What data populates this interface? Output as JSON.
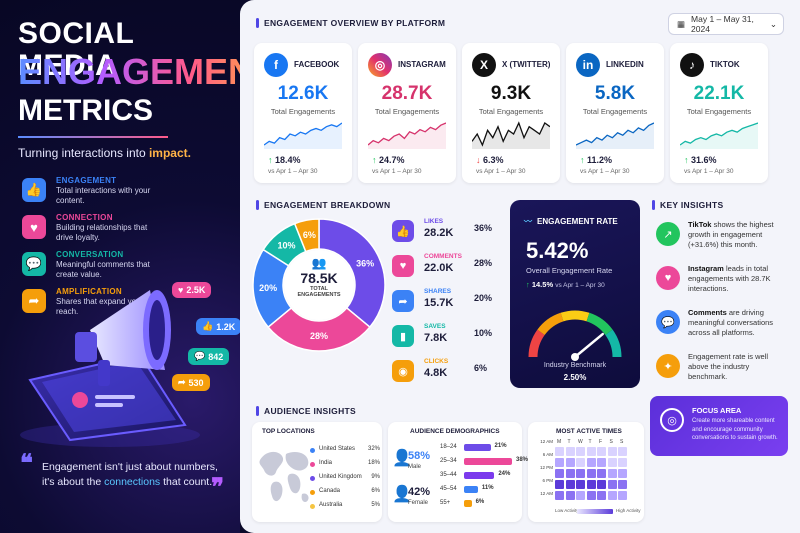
{
  "left": {
    "title_line1": "SOCIAL MEDIA",
    "title_line2": "ENGAGEMENT",
    "title_line3": "METRICS",
    "tagline_prefix": "Turning interactions into ",
    "tagline_highlight": "impact.",
    "categories": [
      {
        "name": "ENGAGEMENT",
        "desc": "Total interactions with your content.",
        "color": "#3b82f6",
        "icon": "thumbs-up-icon",
        "glyph": "👍"
      },
      {
        "name": "CONNECTION",
        "desc": "Building relationships that drive loyalty.",
        "color": "#ec4899",
        "icon": "heart-icon",
        "glyph": "♥"
      },
      {
        "name": "CONVERSATION",
        "desc": "Meaningful comments that create value.",
        "color": "#14b8a6",
        "icon": "chat-icon",
        "glyph": "💬"
      },
      {
        "name": "AMPLIFICATION",
        "desc": "Shares that expand your reach.",
        "color": "#f59e0b",
        "icon": "share-icon",
        "glyph": "➦"
      }
    ],
    "bubbles": [
      {
        "value": "2.5K",
        "color": "#ec4899"
      },
      {
        "value": "1.2K",
        "color": "#3b82f6"
      },
      {
        "value": "842",
        "color": "#14b8a6"
      },
      {
        "value": "530",
        "color": "#f59e0b"
      }
    ],
    "quote_a": "Engagement isn't just about numbers,",
    "quote_b": "it's about the ",
    "quote_highlight": "connections",
    "quote_c": " that count."
  },
  "overview": {
    "title": "ENGAGEMENT OVERVIEW BY PLATFORM",
    "date_range": "May 1 – May 31, 2024",
    "platforms": [
      {
        "name": "FACEBOOK",
        "value": "12.6K",
        "label": "Total Engagements",
        "change": "18.4%",
        "dir": "up",
        "vs": "vs Apr 1 – Apr 30",
        "color": "#1877f2",
        "valcolor": "#1877f2",
        "icon": "facebook-icon",
        "glyph": "f",
        "spark": [
          5,
          7,
          6,
          9,
          8,
          11,
          10,
          12,
          11,
          13,
          14,
          13,
          15,
          16,
          15,
          17
        ]
      },
      {
        "name": "INSTAGRAM",
        "value": "28.7K",
        "label": "Total Engagements",
        "change": "24.7%",
        "dir": "up",
        "vs": "vs Apr 1 – Apr 30",
        "color": "#e1306c",
        "valcolor": "#d6336c",
        "icon": "instagram-icon",
        "glyph": "◎",
        "spark": [
          6,
          8,
          7,
          9,
          8,
          10,
          11,
          9,
          12,
          11,
          13,
          12,
          14,
          13,
          15,
          16
        ]
      },
      {
        "name": "X (TWITTER)",
        "value": "9.3K",
        "label": "Total Engagements",
        "change": "6.3%",
        "dir": "down",
        "vs": "vs Apr 1 – Apr 30",
        "color": "#111111",
        "valcolor": "#111111",
        "icon": "x-icon",
        "glyph": "X",
        "spark": [
          8,
          10,
          7,
          11,
          9,
          12,
          8,
          11,
          10,
          13,
          9,
          12,
          11,
          10,
          13,
          12
        ]
      },
      {
        "name": "LINKEDIN",
        "value": "5.8K",
        "label": "Total Engagements",
        "change": "11.2%",
        "dir": "up",
        "vs": "vs Apr 1 – Apr 30",
        "color": "#0a66c2",
        "valcolor": "#0a66c2",
        "icon": "linkedin-icon",
        "glyph": "in",
        "spark": [
          5,
          6,
          7,
          6,
          8,
          7,
          9,
          8,
          10,
          9,
          11,
          10,
          12,
          11,
          13,
          14
        ]
      },
      {
        "name": "TIKTOK",
        "value": "22.1K",
        "label": "Total Engagements",
        "change": "31.6%",
        "dir": "up",
        "vs": "vs Apr 1 – Apr 30",
        "color": "#111111",
        "valcolor": "#14b8a6",
        "icon": "tiktok-icon",
        "glyph": "♪",
        "spark": [
          4,
          6,
          5,
          7,
          8,
          7,
          9,
          10,
          9,
          11,
          12,
          11,
          13,
          14,
          15,
          16
        ]
      }
    ]
  },
  "breakdown": {
    "title": "ENGAGEMENT BREAKDOWN",
    "total": "78.5K",
    "total_label_1": "TOTAL",
    "total_label_2": "ENGAGEMENTS",
    "slices": [
      {
        "name": "LIKES",
        "value": "28.2K",
        "pct": 36,
        "pct_label": "36%",
        "color": "#6d4ce8",
        "icon": "thumbs-up-icon",
        "glyph": "👍"
      },
      {
        "name": "COMMENTS",
        "value": "22.0K",
        "pct": 28,
        "pct_label": "28%",
        "color": "#ec4899",
        "icon": "heart-icon",
        "glyph": "♥"
      },
      {
        "name": "SHARES",
        "value": "15.7K",
        "pct": 20,
        "pct_label": "20%",
        "color": "#3b82f6",
        "icon": "share-icon",
        "glyph": "➦"
      },
      {
        "name": "SAVES",
        "value": "7.8K",
        "pct": 10,
        "pct_label": "10%",
        "color": "#14b8a6",
        "icon": "bookmark-icon",
        "glyph": "▮"
      },
      {
        "name": "CLICKS",
        "value": "4.8K",
        "pct": 6,
        "pct_label": "6%",
        "color": "#f59e0b",
        "icon": "eye-icon",
        "glyph": "◉"
      }
    ]
  },
  "rate": {
    "title": "ENGAGEMENT RATE",
    "value": "5.42%",
    "label": "Overall Engagement Rate",
    "change": "14.5%",
    "vs": "vs Apr 1 – Apr 30",
    "benchmark_label": "Industry Benchmark",
    "benchmark_value": "2.50%",
    "gauge_fraction": 0.78
  },
  "insights": {
    "title": "KEY INSIGHTS",
    "items": [
      {
        "bold": "TikTok",
        "text": " shows the highest growth in engagement (+31.6%) this month.",
        "color": "#22c55e",
        "icon": "trend-up-icon",
        "glyph": "↗"
      },
      {
        "bold": "Instagram",
        "text": " leads in total engagements with 28.7K interactions.",
        "color": "#ec4899",
        "icon": "heart-icon",
        "glyph": "♥"
      },
      {
        "bold": "Comments",
        "text": " are driving meaningful conversations across all platforms.",
        "color": "#3b82f6",
        "icon": "chat-icon",
        "glyph": "💬"
      },
      {
        "bold": "",
        "text": "Engagement rate is well above the industry benchmark.",
        "color": "#f59e0b",
        "icon": "lightbulb-icon",
        "glyph": "✦"
      }
    ],
    "focus_title": "FOCUS AREA",
    "focus_text": "Create more shareable content and encourage community conversations to sustain growth."
  },
  "audience": {
    "title": "AUDIENCE INSIGHTS",
    "locations_title": "TOP LOCATIONS",
    "locations": [
      {
        "name": "United States",
        "pct": "32%",
        "color": "#3b82f6"
      },
      {
        "name": "India",
        "pct": "18%",
        "color": "#ec4899"
      },
      {
        "name": "United Kingdom",
        "pct": "9%",
        "color": "#6d4ce8"
      },
      {
        "name": "Canada",
        "pct": "6%",
        "color": "#f59e0b"
      },
      {
        "name": "Australia",
        "pct": "5%",
        "color": "#f5c542"
      }
    ],
    "demo_title": "AUDIENCE DEMOGRAPHICS",
    "male_pct": "58%",
    "male_label": "Male",
    "female_pct": "42%",
    "female_label": "Female",
    "ages": [
      {
        "range": "18–24",
        "pct": 21,
        "label": "21%",
        "color": "#6d4ce8"
      },
      {
        "range": "25–34",
        "pct": 38,
        "label": "38%",
        "color": "#ec4899"
      },
      {
        "range": "35–44",
        "pct": 24,
        "label": "24%",
        "color": "#7c3aed"
      },
      {
        "range": "45–54",
        "pct": 11,
        "label": "11%",
        "color": "#3b82f6"
      },
      {
        "range": "55+",
        "pct": 6,
        "label": "6%",
        "color": "#f59e0b"
      }
    ],
    "times_title": "MOST ACTIVE TIMES",
    "days": [
      "M",
      "T",
      "W",
      "T",
      "F",
      "S",
      "S"
    ],
    "hours": [
      "12 AM",
      "6 AM",
      "12 PM",
      "6 PM",
      "12 AM"
    ],
    "heat": [
      [
        1,
        1,
        1,
        1,
        1,
        1,
        1
      ],
      [
        2,
        2,
        1,
        2,
        2,
        1,
        1
      ],
      [
        3,
        3,
        3,
        3,
        3,
        2,
        2
      ],
      [
        4,
        4,
        4,
        4,
        4,
        3,
        3
      ],
      [
        3,
        3,
        2,
        3,
        3,
        2,
        2
      ]
    ],
    "low_label": "Low Activity",
    "high_label": "High Activity"
  }
}
